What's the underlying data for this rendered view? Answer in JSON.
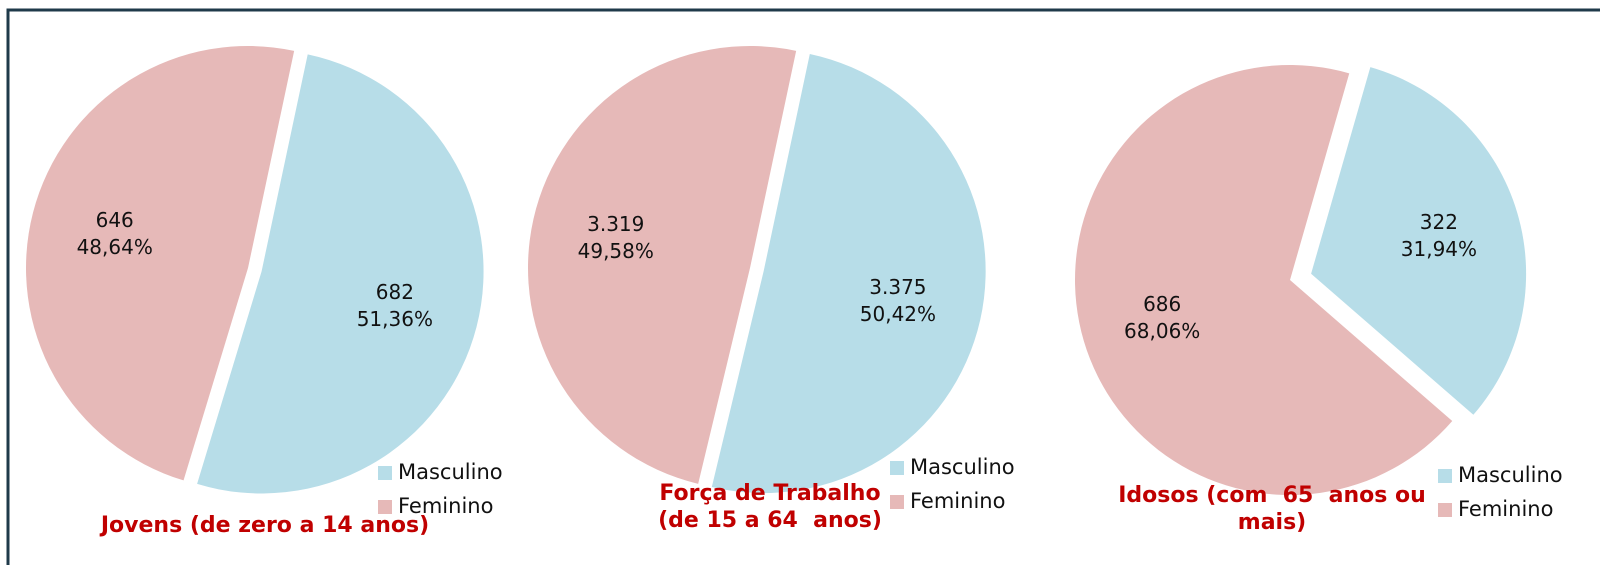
{
  "chart_data": [
    {
      "type": "pie",
      "title": "Jovens (de zero a 14 anos)",
      "categories": [
        "Masculino",
        "Feminino"
      ],
      "values": [
        682,
        646
      ],
      "percent_labels": [
        "51,36%",
        "48,64%"
      ],
      "colors": [
        "#b7dde8",
        "#e6b9b8"
      ]
    },
    {
      "type": "pie",
      "title": "Força de Trabalho\n(de 15 a 64  anos)",
      "categories": [
        "Masculino",
        "Feminino"
      ],
      "values": [
        3375,
        3319
      ],
      "value_labels": [
        "3.375",
        "3.319"
      ],
      "percent_labels": [
        "50,42%",
        "49,58%"
      ],
      "colors": [
        "#b7dde8",
        "#e6b9b8"
      ]
    },
    {
      "type": "pie",
      "title": "Idosos (com  65  anos ou\nmais)",
      "categories": [
        "Masculino",
        "Feminino"
      ],
      "values": [
        322,
        686
      ],
      "percent_labels": [
        "31,94%",
        "68,06%"
      ],
      "colors": [
        "#b7dde8",
        "#e6b9b8"
      ]
    }
  ]
}
